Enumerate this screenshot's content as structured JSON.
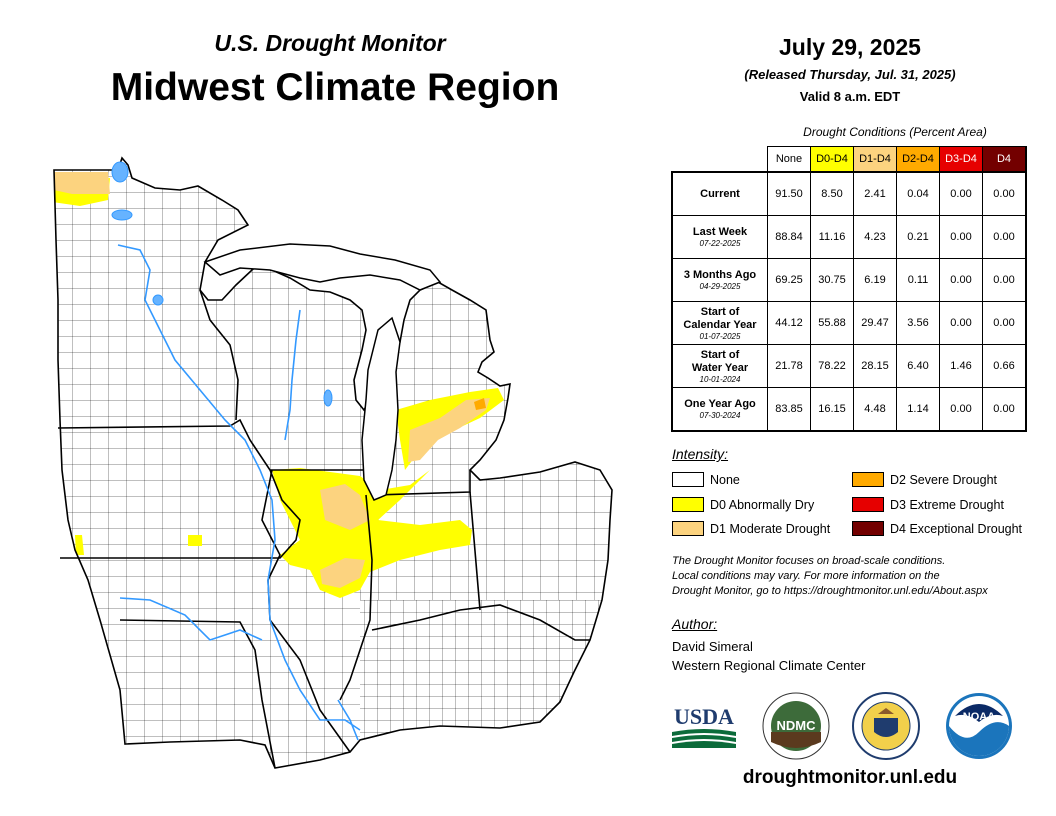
{
  "header": {
    "subtitle": "U.S. Drought Monitor",
    "title": "Midwest Climate Region",
    "date": "July 29, 2025",
    "released": "(Released Thursday, Jul. 31, 2025)",
    "valid": "Valid 8 a.m. EDT"
  },
  "table": {
    "caption": "Drought Conditions (Percent Area)",
    "columns": [
      {
        "label": "None",
        "color": "#ffffff",
        "text_color": "#000000"
      },
      {
        "label": "D0-D4",
        "color": "#ffff00",
        "text_color": "#000000"
      },
      {
        "label": "D1-D4",
        "color": "#fcd37f",
        "text_color": "#000000"
      },
      {
        "label": "D2-D4",
        "color": "#ffaa00",
        "text_color": "#000000"
      },
      {
        "label": "D3-D4",
        "color": "#e60000",
        "text_color": "#ffffff"
      },
      {
        "label": "D4",
        "color": "#730000",
        "text_color": "#ffffff"
      }
    ],
    "rows": [
      {
        "label": "Current",
        "label2": "",
        "date": "",
        "values": [
          "91.50",
          "8.50",
          "2.41",
          "0.04",
          "0.00",
          "0.00"
        ]
      },
      {
        "label": "Last Week",
        "label2": "",
        "date": "07-22-2025",
        "values": [
          "88.84",
          "11.16",
          "4.23",
          "0.21",
          "0.00",
          "0.00"
        ]
      },
      {
        "label": "3 Months Ago",
        "label2": "",
        "date": "04-29-2025",
        "values": [
          "69.25",
          "30.75",
          "6.19",
          "0.11",
          "0.00",
          "0.00"
        ]
      },
      {
        "label": "Start of",
        "label2": "Calendar Year",
        "date": "01-07-2025",
        "values": [
          "44.12",
          "55.88",
          "29.47",
          "3.56",
          "0.00",
          "0.00"
        ]
      },
      {
        "label": "Start of",
        "label2": "Water Year",
        "date": "10-01-2024",
        "values": [
          "21.78",
          "78.22",
          "28.15",
          "6.40",
          "1.46",
          "0.66"
        ]
      },
      {
        "label": "One Year Ago",
        "label2": "",
        "date": "07-30-2024",
        "values": [
          "83.85",
          "16.15",
          "4.48",
          "1.14",
          "0.00",
          "0.00"
        ]
      }
    ]
  },
  "legend": {
    "title": "Intensity:",
    "items": [
      {
        "label": "None",
        "color": "#ffffff"
      },
      {
        "label": "D0 Abnormally Dry",
        "color": "#ffff00"
      },
      {
        "label": "D1 Moderate Drought",
        "color": "#fcd37f"
      },
      {
        "label": "D2 Severe Drought",
        "color": "#ffaa00"
      },
      {
        "label": "D3 Extreme Drought",
        "color": "#e60000"
      },
      {
        "label": "D4 Exceptional Drought",
        "color": "#730000"
      }
    ]
  },
  "note": {
    "line1": "The Drought Monitor focuses on broad-scale conditions.",
    "line2": "Local conditions may vary. For more information on the",
    "line3": "Drought Monitor, go to https://droughtmonitor.unl.edu/About.aspx"
  },
  "author": {
    "heading": "Author:",
    "name": "David Simeral",
    "org": "Western Regional Climate Center"
  },
  "logos": {
    "usda_text": "USDA",
    "ndmc_text": "NDMC",
    "noaa_text": "NOAA"
  },
  "footer": {
    "url": "droughtmonitor.unl.edu"
  }
}
